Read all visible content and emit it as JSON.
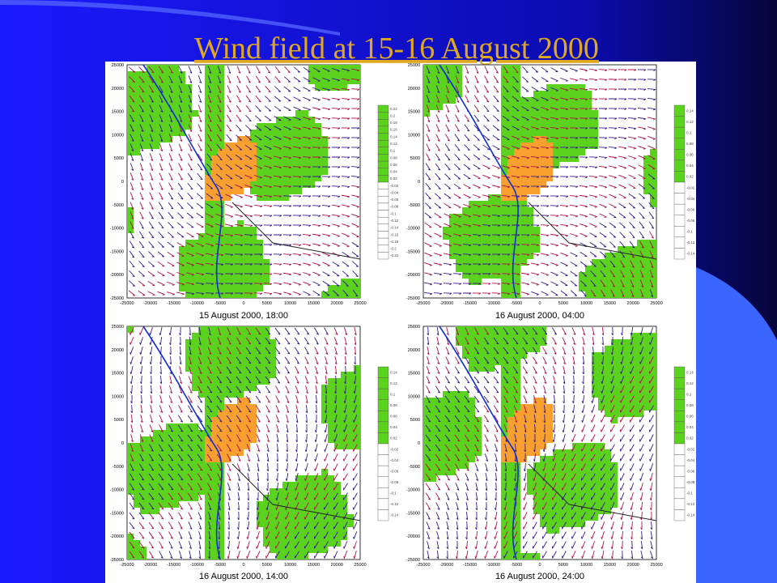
{
  "title": "Wind field at 15-16 August 2000",
  "panels": [
    {
      "caption": "15 August 2000, 18:00",
      "yticks": [
        25000,
        20000,
        15000,
        10000,
        5000,
        0,
        -5000,
        -10000,
        -15000,
        -20000,
        -25000
      ],
      "xticks": [
        -25000,
        -20000,
        -15000,
        -10000,
        -5000,
        0,
        5000,
        10000,
        15000,
        20000,
        25000
      ],
      "scale": [
        0.22,
        0.2,
        0.18,
        0.16,
        0.14,
        0.12,
        0.1,
        0.08,
        0.06,
        0.04,
        0.02,
        -0.02,
        -0.04,
        -0.06,
        -0.08,
        -0.1,
        -0.12,
        -0.14,
        -0.16,
        -0.18,
        -0.2,
        -0.22
      ]
    },
    {
      "caption": "16 August 2000, 04:00",
      "yticks": [
        25000,
        20000,
        15000,
        10000,
        5000,
        0,
        -5000,
        -10000,
        -15000,
        -20000,
        -25000
      ],
      "xticks": [
        -25000,
        -20000,
        -15000,
        -10000,
        -5000,
        0,
        5000,
        10000,
        15000,
        20000,
        25000
      ],
      "scale": [
        0.14,
        0.12,
        0.1,
        0.08,
        0.06,
        0.04,
        0.02,
        -0.02,
        -0.04,
        -0.06,
        -0.08,
        -0.1,
        -0.12,
        -0.14
      ]
    },
    {
      "caption": "16 August 2000, 14:00",
      "yticks": [
        25000,
        20000,
        15000,
        10000,
        5000,
        0,
        -5000,
        -10000,
        -15000,
        -20000,
        -25000
      ],
      "xticks": [
        -25000,
        -20000,
        -15000,
        -10000,
        -5000,
        0,
        5000,
        10000,
        15000,
        20000,
        25000
      ],
      "scale": [
        0.14,
        0.12,
        0.1,
        0.08,
        0.06,
        0.04,
        0.02,
        -0.02,
        -0.04,
        -0.06,
        -0.08,
        -0.1,
        -0.12,
        -0.14
      ]
    },
    {
      "caption": "16 August 2000, 24:00",
      "yticks": [
        25000,
        20000,
        15000,
        10000,
        5000,
        0,
        -5000,
        -10000,
        -15000,
        -20000,
        -25000
      ],
      "xticks": [
        -25000,
        -20000,
        -15000,
        -10000,
        -5000,
        0,
        5000,
        10000,
        15000,
        20000,
        25000
      ],
      "scale": [
        0.14,
        0.12,
        0.1,
        0.08,
        0.06,
        0.04,
        0.02,
        -0.02,
        -0.04,
        -0.06,
        -0.08,
        -0.1,
        -0.12,
        -0.14
      ]
    }
  ]
}
